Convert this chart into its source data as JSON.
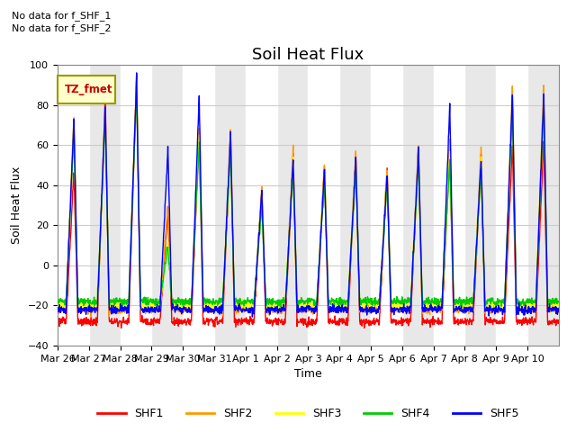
{
  "title": "Soil Heat Flux",
  "ylabel": "Soil Heat Flux",
  "xlabel": "Time",
  "annotations": [
    "No data for f_SHF_1",
    "No data for f_SHF_2"
  ],
  "legend_label": "TZ_fmet",
  "series_names": [
    "SHF1",
    "SHF2",
    "SHF3",
    "SHF4",
    "SHF5"
  ],
  "series_colors": [
    "#ff0000",
    "#ff9900",
    "#ffff00",
    "#00cc00",
    "#0000ff"
  ],
  "ylim": [
    -40,
    100
  ],
  "n_days": 16,
  "dt_hours": 0.25,
  "xtick_labels": [
    "Mar 26",
    "Mar 27",
    "Mar 28",
    "Mar 29",
    "Mar 30",
    "Mar 31",
    "Apr 1",
    "Apr 2",
    "Apr 3",
    "Apr 4",
    "Apr 5",
    "Apr 6",
    "Apr 7",
    "Apr 8",
    "Apr 9",
    "Apr 10"
  ],
  "peak_amplitudes": [
    [
      47,
      84,
      93,
      28,
      67,
      65,
      38,
      55,
      50,
      55,
      48,
      58,
      58,
      55,
      60,
      62
    ],
    [
      75,
      80,
      95,
      30,
      70,
      68,
      40,
      58,
      52,
      58,
      50,
      62,
      62,
      58,
      90,
      90
    ],
    [
      72,
      78,
      92,
      12,
      65,
      63,
      35,
      53,
      47,
      53,
      45,
      57,
      57,
      53,
      85,
      85
    ],
    [
      68,
      73,
      88,
      10,
      60,
      58,
      30,
      48,
      42,
      48,
      40,
      52,
      52,
      48,
      80,
      80
    ],
    [
      73,
      79,
      93,
      58,
      84,
      66,
      38,
      54,
      48,
      54,
      46,
      58,
      80,
      54,
      86,
      86
    ]
  ],
  "night_levels": [
    -28,
    -22,
    -20,
    -18,
    -22
  ],
  "peak_hour": 12.5,
  "rise_hours": 6,
  "fall_hours": 3,
  "title_fontsize": 13,
  "axis_fontsize": 9,
  "tick_fontsize": 8
}
